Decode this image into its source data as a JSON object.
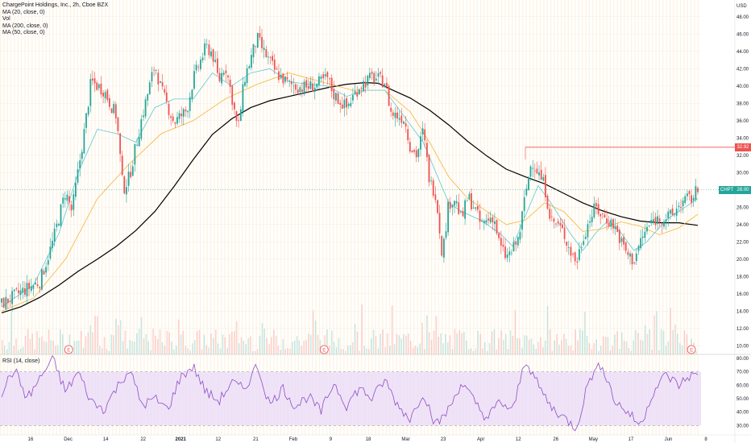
{
  "legend": {
    "title": "ChargePoint Holdings, Inc., 2h, Cboe BZX",
    "ma20": "MA (20, close, 0)",
    "vol": "Vol",
    "ma200": "MA (200, close, 0)",
    "ma50": "MA (50, close, 0)",
    "rsi": "RSI (14, close)"
  },
  "axis": {
    "currency": "USD"
  },
  "tags": {
    "resistance": "32.92",
    "symbol": "CHPT",
    "last": "28.00"
  },
  "earnings_marker": "E",
  "colors": {
    "up": "#26a69a",
    "down": "#ef5350",
    "ma20": "#5cc8d6",
    "ma50": "#f5b43a",
    "ma200": "#000000",
    "rsi": "#8e4ec6",
    "rsi_band": "#ead9f7",
    "resistance": "#ef5350"
  },
  "chart_data": [
    {
      "type": "candlestick",
      "title": "ChargePoint Holdings, Inc., 2h, Cboe BZX",
      "x_tick_labels": [
        "16",
        "Dec",
        "14",
        "22",
        "2021",
        "12",
        "21",
        "Feb",
        "9",
        "18",
        "Mar",
        "23",
        "Apr",
        "12",
        "26",
        "May",
        "17",
        "Jun",
        "8"
      ],
      "y_tick_labels": [
        "10.00",
        "12.00",
        "14.00",
        "16.00",
        "18.00",
        "20.00",
        "22.00",
        "24.00",
        "26.00",
        "28.00",
        "30.00",
        "32.00",
        "34.00",
        "36.00",
        "38.00",
        "40.00",
        "42.00",
        "44.00",
        "46.00",
        "48.00"
      ],
      "ylim": [
        9,
        49
      ],
      "price_path": [
        [
          0,
          14.8
        ],
        [
          3,
          16.2
        ],
        [
          6,
          17.4
        ],
        [
          8,
          22.0
        ],
        [
          10,
          27.8
        ],
        [
          11,
          25.5
        ],
        [
          13,
          35.0
        ],
        [
          14,
          40.5
        ],
        [
          16,
          39.5
        ],
        [
          18,
          36.5
        ],
        [
          19,
          28.0
        ],
        [
          20,
          29.5
        ],
        [
          22,
          36.5
        ],
        [
          24,
          42.5
        ],
        [
          25,
          39.5
        ],
        [
          27,
          35.8
        ],
        [
          29,
          37.2
        ],
        [
          30,
          40.8
        ],
        [
          32,
          44.5
        ],
        [
          33,
          43.8
        ],
        [
          34,
          40.5
        ],
        [
          35,
          42.5
        ],
        [
          36,
          39.0
        ],
        [
          37,
          34.8
        ],
        [
          38,
          40.8
        ],
        [
          40,
          45.5
        ],
        [
          41,
          44.0
        ],
        [
          43,
          41.5
        ],
        [
          45,
          40.2
        ],
        [
          47,
          39.8
        ],
        [
          49,
          40.0
        ],
        [
          51,
          40.9
        ],
        [
          52,
          39.0
        ],
        [
          54,
          37.5
        ],
        [
          56,
          40.0
        ],
        [
          58,
          41.0
        ],
        [
          60,
          40.5
        ],
        [
          61,
          36.8
        ],
        [
          63,
          36.3
        ],
        [
          64,
          33.0
        ],
        [
          65,
          32.0
        ],
        [
          66,
          34.8
        ],
        [
          67,
          29.0
        ],
        [
          68,
          27.5
        ],
        [
          69,
          20.5
        ],
        [
          70,
          26.5
        ],
        [
          71,
          27.0
        ],
        [
          72,
          24.5
        ],
        [
          73,
          27.2
        ],
        [
          74,
          26.0
        ],
        [
          75,
          24.0
        ],
        [
          77,
          25.0
        ],
        [
          78,
          21.5
        ],
        [
          79,
          20.2
        ],
        [
          80,
          21.0
        ],
        [
          81,
          22.5
        ],
        [
          82,
          27.5
        ],
        [
          83,
          31.5
        ],
        [
          84,
          30.0
        ],
        [
          85,
          28.5
        ],
        [
          86,
          24.5
        ],
        [
          87,
          24.0
        ],
        [
          88,
          23.0
        ],
        [
          89,
          21.0
        ],
        [
          90,
          19.6
        ],
        [
          91,
          22.5
        ],
        [
          92,
          24.5
        ],
        [
          93,
          26.0
        ],
        [
          94,
          25.0
        ],
        [
          95,
          24.5
        ],
        [
          96,
          23.8
        ],
        [
          97,
          22.0
        ],
        [
          98,
          20.5
        ],
        [
          99,
          19.8
        ],
        [
          100,
          22.0
        ],
        [
          101,
          23.5
        ],
        [
          102,
          24.5
        ],
        [
          104,
          24.8
        ],
        [
          105,
          25.0
        ],
        [
          106,
          26.2
        ],
        [
          107,
          26.8
        ],
        [
          108,
          27.0
        ],
        [
          109,
          28.0
        ]
      ],
      "series": [
        {
          "name": "MA (200, close, 0)",
          "points": [
            [
              0,
              13.8
            ],
            [
              3,
              14.5
            ],
            [
              6,
              15.6
            ],
            [
              9,
              17.0
            ],
            [
              12,
              18.6
            ],
            [
              15,
              20.0
            ],
            [
              18,
              21.5
            ],
            [
              21,
              23.3
            ],
            [
              24,
              25.5
            ],
            [
              27,
              28.4
            ],
            [
              30,
              31.5
            ],
            [
              33,
              34.4
            ],
            [
              36,
              36.2
            ],
            [
              39,
              37.5
            ],
            [
              42,
              38.3
            ],
            [
              45,
              38.8
            ],
            [
              48,
              39.3
            ],
            [
              51,
              39.8
            ],
            [
              54,
              40.2
            ],
            [
              57,
              40.4
            ],
            [
              59,
              40.3
            ],
            [
              61,
              39.6
            ],
            [
              64,
              38.6
            ],
            [
              67,
              37.2
            ],
            [
              70,
              35.5
            ],
            [
              73,
              33.6
            ],
            [
              76,
              31.9
            ],
            [
              79,
              30.4
            ],
            [
              82,
              29.5
            ],
            [
              85,
              28.7
            ],
            [
              88,
              27.6
            ],
            [
              91,
              26.5
            ],
            [
              94,
              25.6
            ],
            [
              97,
              24.9
            ],
            [
              100,
              24.4
            ],
            [
              103,
              24.2
            ],
            [
              106,
              24.2
            ],
            [
              109,
              23.9
            ]
          ]
        },
        {
          "name": "MA (50, close, 0)",
          "points": [
            [
              0,
              14.0
            ],
            [
              5,
              15.5
            ],
            [
              10,
              20.0
            ],
            [
              15,
              27.0
            ],
            [
              20,
              31.0
            ],
            [
              25,
              34.5
            ],
            [
              30,
              36.0
            ],
            [
              35,
              38.5
            ],
            [
              40,
              40.2
            ],
            [
              45,
              41.5
            ],
            [
              50,
              40.5
            ],
            [
              55,
              39.5
            ],
            [
              60,
              39.5
            ],
            [
              64,
              37.0
            ],
            [
              67,
              33.5
            ],
            [
              70,
              29.5
            ],
            [
              73,
              27.0
            ],
            [
              76,
              25.5
            ],
            [
              79,
              24.0
            ],
            [
              82,
              24.5
            ],
            [
              85,
              26.5
            ],
            [
              88,
              25.5
            ],
            [
              91,
              23.2
            ],
            [
              94,
              23.5
            ],
            [
              97,
              24.3
            ],
            [
              100,
              23.8
            ],
            [
              103,
              22.8
            ],
            [
              106,
              23.6
            ],
            [
              109,
              25.2
            ]
          ]
        },
        {
          "name": "MA (20, close, 0)",
          "points": [
            [
              0,
              14.5
            ],
            [
              5,
              17.0
            ],
            [
              9,
              23.0
            ],
            [
              12,
              30.0
            ],
            [
              15,
              35.0
            ],
            [
              18,
              34.5
            ],
            [
              21,
              33.5
            ],
            [
              24,
              37.5
            ],
            [
              27,
              38.5
            ],
            [
              30,
              38.5
            ],
            [
              33,
              41.5
            ],
            [
              36,
              40.0
            ],
            [
              39,
              41.5
            ],
            [
              42,
              42.0
            ],
            [
              45,
              40.5
            ],
            [
              48,
              40.2
            ],
            [
              51,
              40.0
            ],
            [
              54,
              38.8
            ],
            [
              57,
              39.5
            ],
            [
              60,
              39.5
            ],
            [
              63,
              36.5
            ],
            [
              66,
              33.5
            ],
            [
              68,
              30.0
            ],
            [
              70,
              26.5
            ],
            [
              72,
              25.5
            ],
            [
              75,
              24.5
            ],
            [
              78,
              23.0
            ],
            [
              80,
              21.5
            ],
            [
              82,
              25.0
            ],
            [
              84,
              28.5
            ],
            [
              86,
              26.5
            ],
            [
              89,
              23.0
            ],
            [
              91,
              21.0
            ],
            [
              93,
              23.0
            ],
            [
              95,
              24.5
            ],
            [
              97,
              23.0
            ],
            [
              99,
              21.0
            ],
            [
              101,
              22.0
            ],
            [
              104,
              24.5
            ],
            [
              107,
              26.0
            ],
            [
              109,
              27.0
            ]
          ]
        }
      ],
      "resistance_level": 32.92,
      "last_price": 28.0
    },
    {
      "type": "line",
      "title": "RSI (14, close)",
      "y_tick_labels": [
        "30.00",
        "40.00",
        "50.00",
        "60.00",
        "70.00",
        "80.00"
      ],
      "ylim": [
        23,
        83
      ],
      "band": [
        30,
        70
      ],
      "series": [
        {
          "name": "RSI (14, close)",
          "points": [
            [
              0,
              55
            ],
            [
              2,
              72
            ],
            [
              4,
              50
            ],
            [
              6,
              65
            ],
            [
              8,
              80
            ],
            [
              10,
              55
            ],
            [
              12,
              70
            ],
            [
              14,
              48
            ],
            [
              16,
              42
            ],
            [
              18,
              58
            ],
            [
              20,
              72
            ],
            [
              22,
              45
            ],
            [
              24,
              50
            ],
            [
              26,
              42
            ],
            [
              28,
              66
            ],
            [
              30,
              74
            ],
            [
              32,
              55
            ],
            [
              34,
              48
            ],
            [
              36,
              62
            ],
            [
              38,
              57
            ],
            [
              40,
              75
            ],
            [
              42,
              45
            ],
            [
              44,
              58
            ],
            [
              46,
              44
            ],
            [
              48,
              52
            ],
            [
              50,
              40
            ],
            [
              52,
              62
            ],
            [
              54,
              45
            ],
            [
              56,
              58
            ],
            [
              58,
              50
            ],
            [
              60,
              64
            ],
            [
              62,
              45
            ],
            [
              64,
              35
            ],
            [
              66,
              55
            ],
            [
              68,
              30
            ],
            [
              70,
              42
            ],
            [
              72,
              62
            ],
            [
              74,
              48
            ],
            [
              76,
              35
            ],
            [
              78,
              48
            ],
            [
              80,
              40
            ],
            [
              82,
              80
            ],
            [
              84,
              60
            ],
            [
              86,
              44
            ],
            [
              88,
              36
            ],
            [
              90,
              28
            ],
            [
              92,
              65
            ],
            [
              94,
              76
            ],
            [
              96,
              48
            ],
            [
              98,
              40
            ],
            [
              100,
              30
            ],
            [
              102,
              55
            ],
            [
              104,
              68
            ],
            [
              106,
              60
            ],
            [
              108,
              68
            ],
            [
              109,
              66
            ]
          ]
        }
      ]
    }
  ]
}
